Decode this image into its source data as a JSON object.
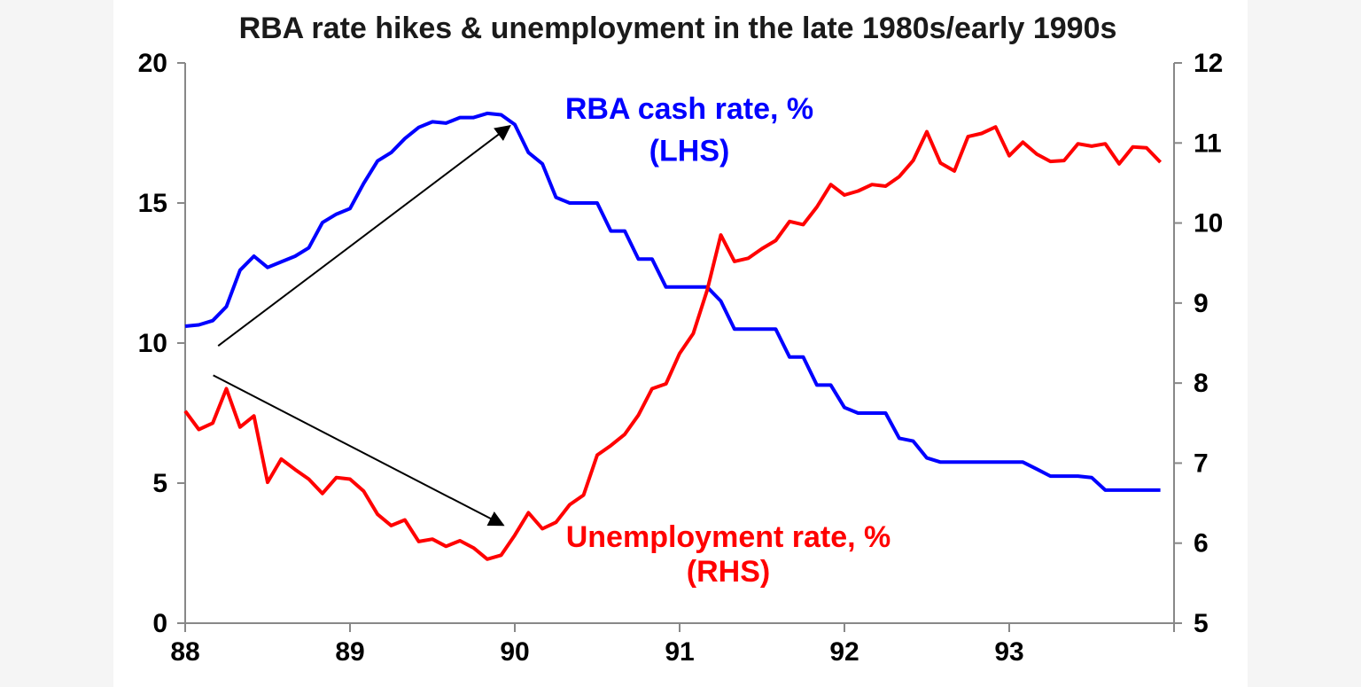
{
  "chart_data": {
    "type": "line",
    "title": "RBA rate hikes & unemployment in the late 1980s/early 1990s",
    "x_ticks": [
      "88",
      "89",
      "90",
      "91",
      "92",
      "93"
    ],
    "x_range": [
      1988.0,
      1994.0
    ],
    "y_left": {
      "range": [
        0,
        20
      ],
      "ticks": [
        "0",
        "5",
        "10",
        "15",
        "20"
      ]
    },
    "y_right": {
      "range": [
        5,
        12
      ],
      "ticks": [
        "5",
        "6",
        "7",
        "8",
        "9",
        "10",
        "11",
        "12"
      ]
    },
    "grid": false,
    "series": [
      {
        "axis": "left",
        "color": "#0000ff",
        "x": [
          1988.0,
          1988.083,
          1988.167,
          1988.25,
          1988.333,
          1988.417,
          1988.5,
          1988.583,
          1988.667,
          1988.75,
          1988.833,
          1988.917,
          1989.0,
          1989.083,
          1989.167,
          1989.25,
          1989.333,
          1989.417,
          1989.5,
          1989.583,
          1989.667,
          1989.75,
          1989.833,
          1989.917,
          1990.0,
          1990.083,
          1990.167,
          1990.25,
          1990.333,
          1990.417,
          1990.5,
          1990.583,
          1990.667,
          1990.75,
          1990.833,
          1990.917,
          1991.0,
          1991.083,
          1991.167,
          1991.25,
          1991.333,
          1991.417,
          1991.5,
          1991.583,
          1991.667,
          1991.75,
          1991.833,
          1991.917,
          1992.0,
          1992.083,
          1992.167,
          1992.25,
          1992.333,
          1992.417,
          1992.5,
          1992.583,
          1992.667,
          1992.75,
          1992.833,
          1992.917,
          1993.0,
          1993.083,
          1993.167,
          1993.25,
          1993.333,
          1993.417,
          1993.5,
          1993.583,
          1993.667,
          1993.75,
          1993.833,
          1993.917
        ],
        "values": [
          10.6,
          10.65,
          10.8,
          11.3,
          12.6,
          13.1,
          12.7,
          12.9,
          13.1,
          13.4,
          14.3,
          14.6,
          14.8,
          15.7,
          16.5,
          16.8,
          17.3,
          17.7,
          17.9,
          17.85,
          18.05,
          18.05,
          18.2,
          18.15,
          17.8,
          16.8,
          16.4,
          15.2,
          15.0,
          15.0,
          15.0,
          14.0,
          14.0,
          13.0,
          13.0,
          12.0,
          12.0,
          12.0,
          12.0,
          11.5,
          10.5,
          10.5,
          10.5,
          10.5,
          9.5,
          9.5,
          8.5,
          8.5,
          7.7,
          7.5,
          7.5,
          7.5,
          6.6,
          6.5,
          5.9,
          5.75,
          5.75,
          5.75,
          5.75,
          5.75,
          5.75,
          5.75,
          5.5,
          5.25,
          5.25,
          5.25,
          5.2,
          4.75,
          4.75,
          4.75,
          4.75,
          4.75
        ]
      },
      {
        "axis": "right",
        "color": "#ff0000",
        "x": [
          1988.0,
          1988.083,
          1988.167,
          1988.25,
          1988.333,
          1988.417,
          1988.5,
          1988.583,
          1988.667,
          1988.75,
          1988.833,
          1988.917,
          1989.0,
          1989.083,
          1989.167,
          1989.25,
          1989.333,
          1989.417,
          1989.5,
          1989.583,
          1989.667,
          1989.75,
          1989.833,
          1989.917,
          1990.0,
          1990.083,
          1990.167,
          1990.25,
          1990.333,
          1990.417,
          1990.5,
          1990.583,
          1990.667,
          1990.75,
          1990.833,
          1990.917,
          1991.0,
          1991.083,
          1991.167,
          1991.25,
          1991.333,
          1991.417,
          1991.5,
          1991.583,
          1991.667,
          1991.75,
          1991.833,
          1991.917,
          1992.0,
          1992.083,
          1992.167,
          1992.25,
          1992.333,
          1992.417,
          1992.5,
          1992.583,
          1992.667,
          1992.75,
          1992.833,
          1992.917,
          1993.0,
          1993.083,
          1993.167,
          1993.25,
          1993.333,
          1993.417,
          1993.5,
          1993.583,
          1993.667,
          1993.75,
          1993.833,
          1993.917
        ],
        "values": [
          7.65,
          7.42,
          7.5,
          7.93,
          7.45,
          7.59,
          6.76,
          7.05,
          6.92,
          6.8,
          6.62,
          6.82,
          6.8,
          6.65,
          6.36,
          6.22,
          6.29,
          6.02,
          6.05,
          5.96,
          6.03,
          5.94,
          5.8,
          5.85,
          6.1,
          6.38,
          6.18,
          6.26,
          6.48,
          6.6,
          7.1,
          7.22,
          7.36,
          7.6,
          7.93,
          7.99,
          8.37,
          8.62,
          9.16,
          9.85,
          9.52,
          9.56,
          9.68,
          9.78,
          10.02,
          9.98,
          10.2,
          10.48,
          10.35,
          10.4,
          10.48,
          10.46,
          10.58,
          10.78,
          11.14,
          10.75,
          10.65,
          11.08,
          11.12,
          11.2,
          10.84,
          11.01,
          10.86,
          10.77,
          10.78,
          10.99,
          10.96,
          10.99,
          10.74,
          10.95,
          10.94,
          10.76
        ]
      }
    ],
    "annotations": [
      {
        "text": "RBA cash rate, %",
        "color": "#0000ff",
        "x": 1990.0,
        "y": 18.0,
        "axis": "left"
      },
      {
        "text": "(LHS)",
        "color": "#0000ff",
        "x": 1990.0,
        "y": 16.5,
        "axis": "left"
      },
      {
        "text": "Unemployment rate, %",
        "color": "#ff0000",
        "x": 1990.0,
        "y": 5.95,
        "axis": "right"
      },
      {
        "text": "(RHS)",
        "color": "#ff0000",
        "x": 1990.0,
        "y": 5.52,
        "axis": "right"
      }
    ],
    "arrows": [
      {
        "from": [
          1988.2,
          9.9
        ],
        "to": [
          1989.97,
          17.75
        ],
        "axis": "left"
      },
      {
        "from": [
          1988.17,
          8.85
        ],
        "to": [
          1989.93,
          3.5
        ],
        "axis": "left"
      }
    ]
  }
}
